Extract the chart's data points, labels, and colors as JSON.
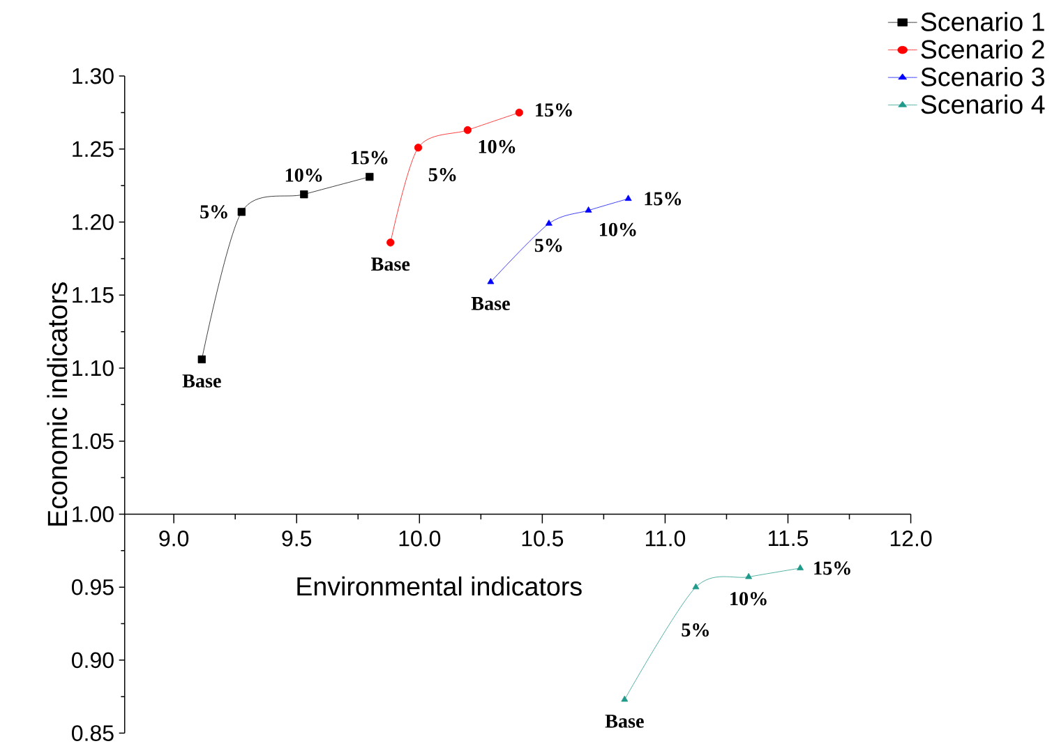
{
  "chart_data": {
    "type": "line",
    "xlabel": "Environmental indicators",
    "ylabel": "Economic indicators",
    "xlim": [
      8.8,
      12.0
    ],
    "ylim": [
      0.85,
      1.3
    ],
    "xticks": [
      {
        "value": 9.0,
        "label": "9.0"
      },
      9.5,
      {
        "value": 10.0,
        "label": "10.0"
      },
      10.5,
      {
        "value": 11.0,
        "label": "11.0"
      },
      11.5,
      {
        "value": 12.0,
        "label": "12.0"
      }
    ],
    "yticks": [
      {
        "value": 0.85,
        "label": "0.85"
      },
      {
        "value": 0.9,
        "label": "0.90"
      },
      {
        "value": 0.95,
        "label": "0.95"
      },
      {
        "value": 1.0,
        "label": "1.00"
      },
      {
        "value": 1.05,
        "label": "1.05"
      },
      {
        "value": 1.1,
        "label": "1.10"
      },
      {
        "value": 1.15,
        "label": "1.15"
      },
      {
        "value": 1.2,
        "label": "1.20"
      },
      {
        "value": 1.25,
        "label": "1.25"
      },
      {
        "value": 1.3,
        "label": "1.30"
      }
    ],
    "legend": "top right",
    "grid": false,
    "series": [
      {
        "name": "Scenario 1",
        "color": "#000000",
        "marker": "square",
        "x": [
          9.114,
          9.276,
          9.53,
          9.797
        ],
        "values": [
          1.106,
          1.207,
          1.219,
          1.231
        ]
      },
      {
        "name": "Scenario 2",
        "color": "#ff0000",
        "marker": "circle",
        "x": [
          9.882,
          9.995,
          10.196,
          10.406
        ],
        "values": [
          1.186,
          1.251,
          1.263,
          1.275
        ]
      },
      {
        "name": "Scenario 3",
        "color": "#0000ff",
        "marker": "triangle",
        "x": [
          10.29,
          10.527,
          10.688,
          10.85
        ],
        "values": [
          1.159,
          1.199,
          1.208,
          1.216
        ]
      },
      {
        "name": "Scenario 4",
        "color": "#1f9a8a",
        "marker": "triangle down",
        "x": [
          10.835,
          11.125,
          11.34,
          11.55
        ],
        "values": [
          0.873,
          0.95,
          0.957,
          0.963
        ]
      }
    ],
    "annotations": [
      {
        "text": "Base",
        "x": 9.114,
        "y": 1.106
      },
      {
        "text": "5%",
        "x": 9.276,
        "y": 1.207
      },
      {
        "text": "10%",
        "x": 9.53,
        "y": 1.219
      },
      {
        "text": "15%",
        "x": 9.797,
        "y": 1.231
      },
      {
        "text": "Base",
        "x": 9.882,
        "y": 1.186
      },
      {
        "text": "5%",
        "x": 9.995,
        "y": 1.251
      },
      {
        "text": "10%",
        "x": 10.196,
        "y": 1.263
      },
      {
        "text": "15%",
        "x": 10.406,
        "y": 1.275
      },
      {
        "text": "Base",
        "x": 10.29,
        "y": 1.159
      },
      {
        "text": "5%",
        "x": 10.527,
        "y": 1.199
      },
      {
        "text": "10%",
        "x": 10.688,
        "y": 1.208
      },
      {
        "text": "15%",
        "x": 10.85,
        "y": 1.216
      },
      {
        "text": "Base",
        "x": 10.835,
        "y": 0.873
      },
      {
        "text": "5%",
        "x": 11.125,
        "y": 0.95
      },
      {
        "text": "10%",
        "x": 11.34,
        "y": 0.957
      },
      {
        "text": "15%",
        "x": 11.55,
        "y": 0.963
      }
    ]
  }
}
